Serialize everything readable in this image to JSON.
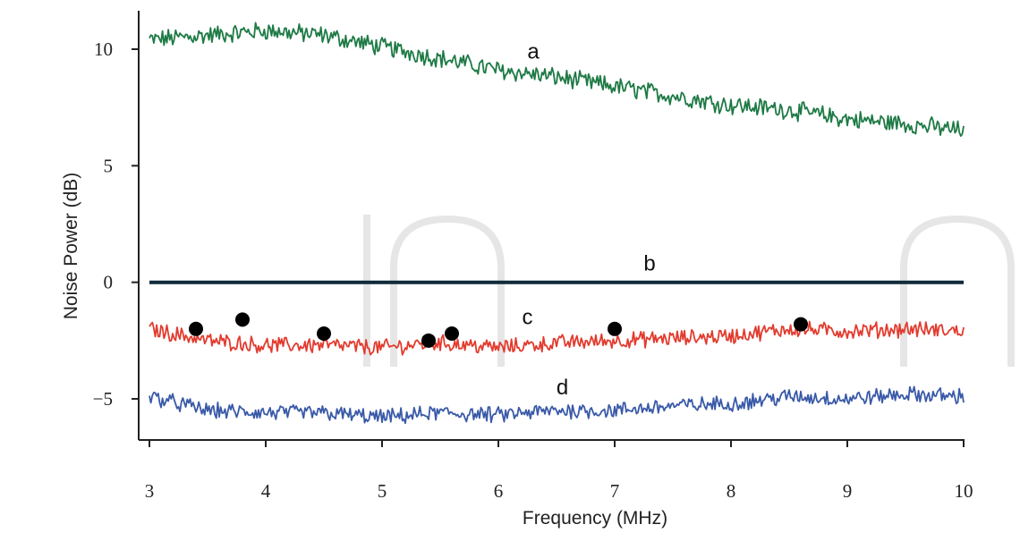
{
  "chart_data": {
    "type": "line",
    "xlabel": "Frequency (MHz)",
    "ylabel": "Noise Power (dB)",
    "xlim": [
      3,
      10
    ],
    "ylim": [
      -6.8,
      11.7
    ],
    "x_ticks": [
      3,
      4,
      5,
      6,
      7,
      8,
      9,
      10
    ],
    "x_tick_labels": [
      "3",
      "4",
      "5",
      "6",
      "7",
      "8",
      "9",
      "10"
    ],
    "y_ticks": [
      -5,
      0,
      5,
      10
    ],
    "y_tick_labels": [
      "−5",
      "0",
      "5",
      "10"
    ],
    "grid": false,
    "legend": "none",
    "series": [
      {
        "name": "a",
        "color": "#1e7a45",
        "line_style": "noisy",
        "noise_amplitude": 0.35,
        "x": [
          3.0,
          3.5,
          4.0,
          4.5,
          5.0,
          5.5,
          6.0,
          6.5,
          7.0,
          7.5,
          8.0,
          8.5,
          9.0,
          9.5,
          10.0
        ],
        "values": [
          10.4,
          10.6,
          10.8,
          10.6,
          10.1,
          9.6,
          9.1,
          8.8,
          8.4,
          8.0,
          7.6,
          7.4,
          7.0,
          6.8,
          6.5
        ]
      },
      {
        "name": "b",
        "color": "#0f2a3a",
        "line_style": "flat",
        "noise_amplitude": 0,
        "x": [
          3.0,
          10.0
        ],
        "values": [
          0.0,
          0.0
        ]
      },
      {
        "name": "c",
        "color": "#e23b2e",
        "line_style": "noisy",
        "noise_amplitude": 0.3,
        "x": [
          3.0,
          3.5,
          4.0,
          4.5,
          5.0,
          5.5,
          6.0,
          6.5,
          7.0,
          7.5,
          8.0,
          8.5,
          9.0,
          9.5,
          10.0
        ],
        "values": [
          -2.0,
          -2.5,
          -2.7,
          -2.7,
          -2.8,
          -2.6,
          -2.8,
          -2.6,
          -2.5,
          -2.4,
          -2.3,
          -2.0,
          -2.1,
          -2.0,
          -2.1
        ],
        "markers": {
          "x": [
            3.4,
            3.8,
            4.5,
            5.4,
            5.6,
            7.0,
            8.6
          ],
          "y": [
            -2.0,
            -1.6,
            -2.2,
            -2.5,
            -2.2,
            -2.0,
            -1.8
          ],
          "color": "#000000"
        }
      },
      {
        "name": "d",
        "color": "#3a5aa8",
        "line_style": "noisy",
        "noise_amplitude": 0.3,
        "x": [
          3.0,
          3.5,
          4.0,
          4.5,
          5.0,
          5.5,
          6.0,
          6.5,
          7.0,
          7.5,
          8.0,
          8.5,
          9.0,
          9.5,
          10.0
        ],
        "values": [
          -4.9,
          -5.5,
          -5.6,
          -5.6,
          -5.8,
          -5.6,
          -5.7,
          -5.5,
          -5.5,
          -5.3,
          -5.2,
          -4.9,
          -5.0,
          -4.8,
          -4.9
        ]
      }
    ],
    "annotations": [
      {
        "text": "a",
        "x": 6.3,
        "y": 9.6
      },
      {
        "text": "b",
        "x": 7.3,
        "y": 0.5
      },
      {
        "text": "c",
        "x": 6.25,
        "y": -1.8
      },
      {
        "text": "d",
        "x": 6.55,
        "y": -4.8
      }
    ]
  }
}
